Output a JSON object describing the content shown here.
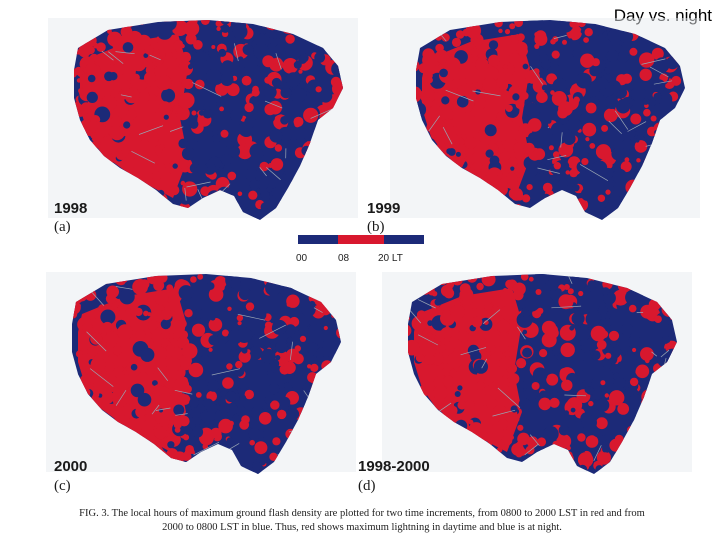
{
  "title": "Day vs. night",
  "panels": [
    {
      "year": "1998",
      "letter": "(a)"
    },
    {
      "year": "1999",
      "letter": "(b)"
    },
    {
      "year": "2000",
      "letter": "(c)"
    },
    {
      "year": "1998-2000",
      "letter": "(d)"
    }
  ],
  "colorbar": {
    "ticks": [
      "00",
      "08",
      "20 LT"
    ],
    "colors": {
      "night": "#1c2a78",
      "day": "#d8182e"
    }
  },
  "map_colors": {
    "background": "#ffffff",
    "land": "#e7ebef",
    "day": "#d8182e",
    "night": "#1c2a78",
    "borders": "#9aa6b4"
  },
  "caption": {
    "line1": "FIG. 3. The local hours of maximum ground flash density are plotted for two time increments, from 0800 to 2000 LST in red and from",
    "line2": "2000 to 0800 LST in blue. Thus, red shows maximum lightning in daytime and blue is at night."
  }
}
